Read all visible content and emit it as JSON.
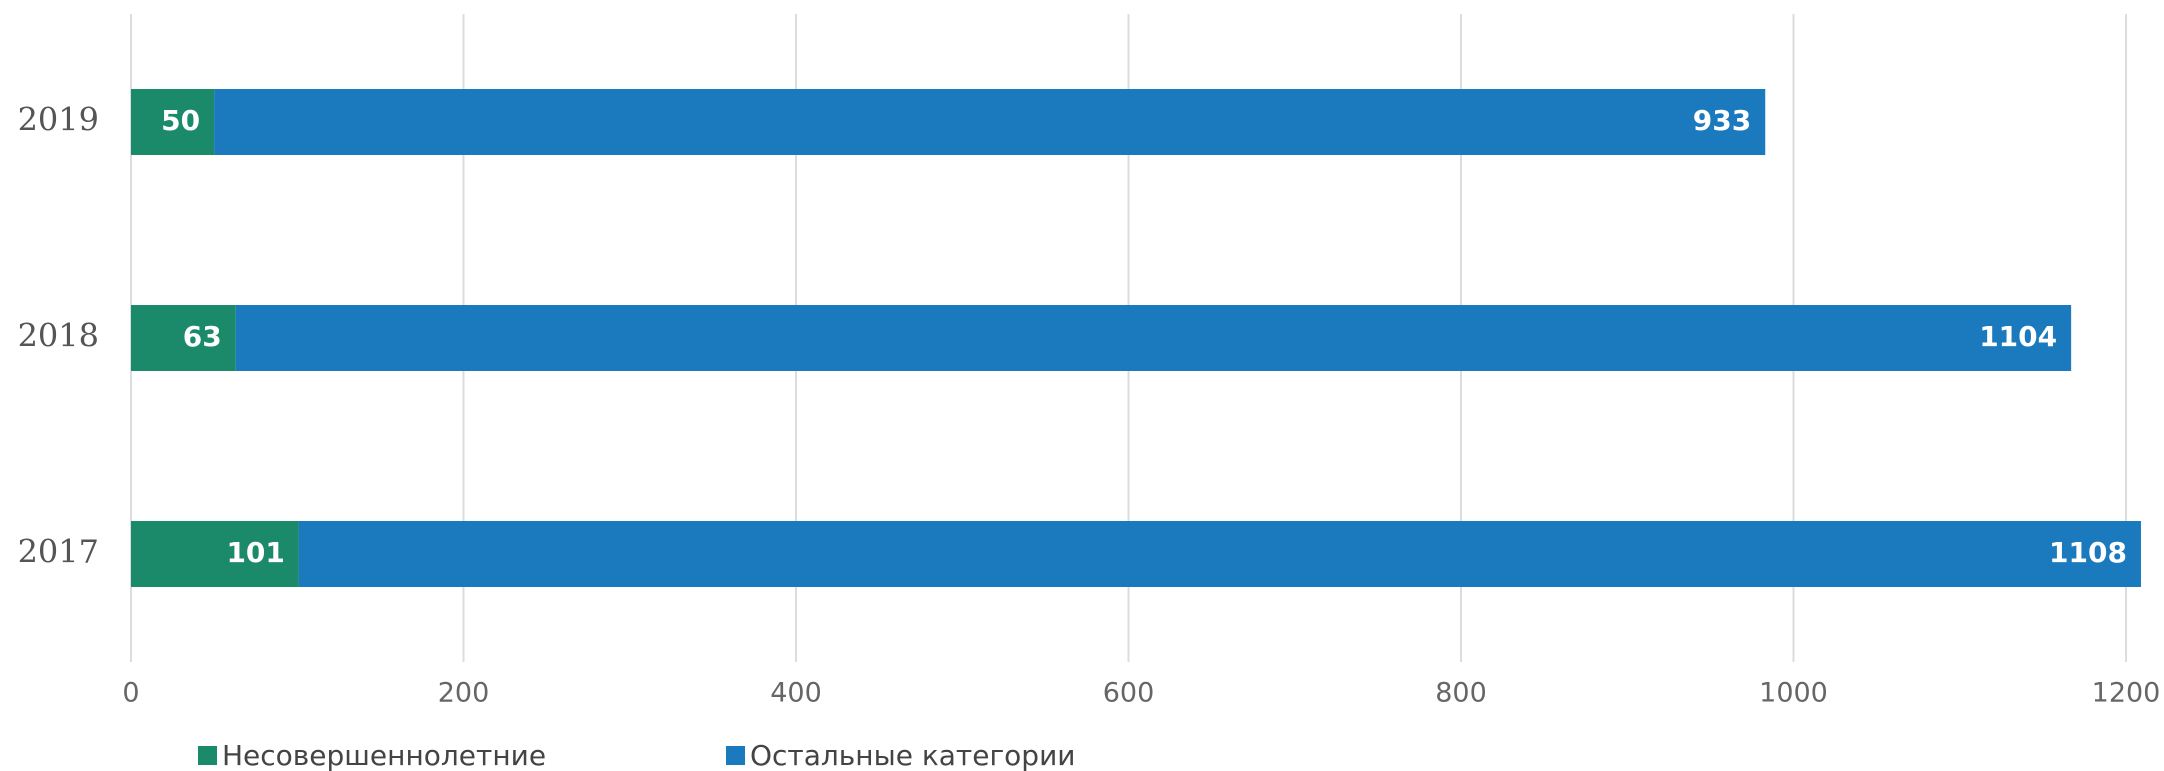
{
  "chart_data": {
    "type": "stacked-barh",
    "categories": [
      "2019",
      "2018",
      "2017"
    ],
    "series": [
      {
        "name": "Несовершеннолетние",
        "color": "#1b8a6b",
        "values": [
          50,
          63,
          101
        ]
      },
      {
        "name": "Остальные категории",
        "color": "#1a7abd",
        "values": [
          933,
          1104,
          1108
        ]
      }
    ],
    "xlim": [
      0,
      1200
    ],
    "xticks": [
      0,
      200,
      400,
      600,
      800,
      1000,
      1200
    ],
    "grid": true
  }
}
